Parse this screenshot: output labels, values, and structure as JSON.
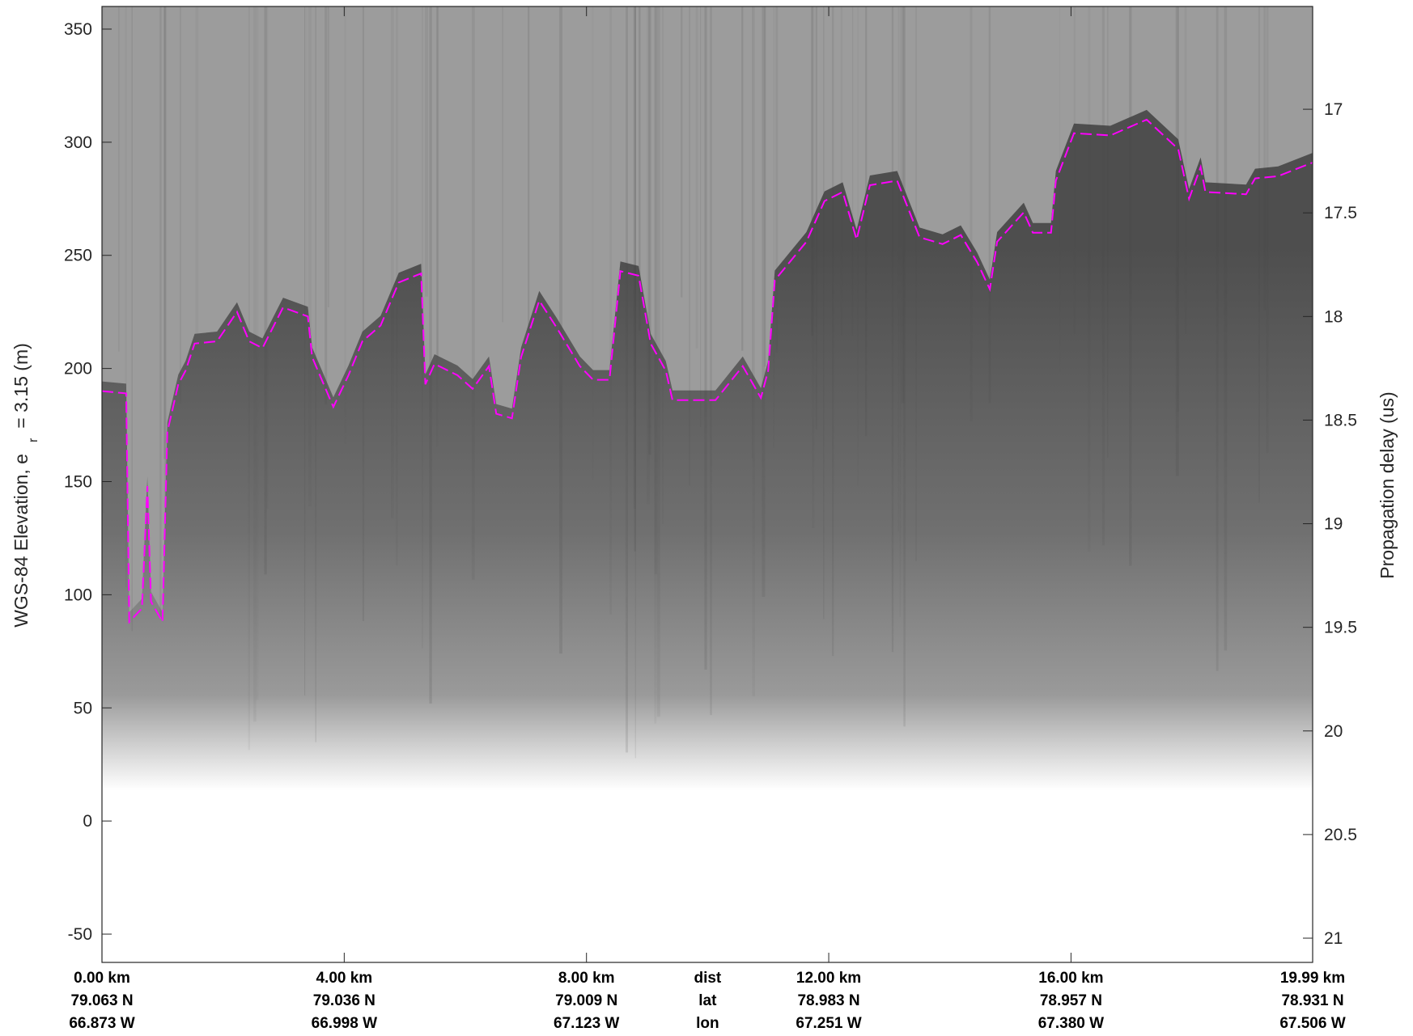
{
  "chart_data": {
    "type": "line",
    "ylabel": "WGS-84 Elevation, e",
    "ylabel_sub": "r",
    "ylabel_end": "= 3.15 (m)",
    "y2label": "Propagation delay (us)",
    "xlim": [
      0,
      19.99
    ],
    "xticks": [
      {
        "value": 0,
        "label": "0.00 km"
      },
      {
        "value": 4,
        "label": "4.00 km"
      },
      {
        "value": 8,
        "label": "8.00 km"
      },
      {
        "value": 12,
        "label": "12.00 km"
      },
      {
        "value": 16,
        "label": "16.00 km"
      },
      {
        "value": 19.99,
        "label": "19.99 km"
      }
    ],
    "row_labels": [
      "dist",
      "lat",
      "lon"
    ],
    "lat_labels": [
      "79.063 N",
      "79.036 N",
      "79.009 N",
      "78.983 N",
      "78.957 N",
      "78.931 N"
    ],
    "lon_labels": [
      "66.873 W",
      "66.998 W",
      "67.123 W",
      "67.251 W",
      "67.380 W",
      "67.506 W"
    ],
    "ylim": [
      -62.5,
      360
    ],
    "yticks": [
      -50,
      0,
      50,
      100,
      150,
      200,
      250,
      300,
      350
    ],
    "y2lim": [
      21.117,
      16.504
    ],
    "y2ticks": [
      17,
      17.5,
      18,
      18.5,
      19,
      19.5,
      20,
      20.5,
      21
    ],
    "x": [
      0,
      0.4,
      0.45,
      0.66,
      0.75,
      0.81,
      1.0,
      1.08,
      1.26,
      1.38,
      1.53,
      1.9,
      2.23,
      2.43,
      2.65,
      2.99,
      3.4,
      3.47,
      3.82,
      4.07,
      4.3,
      4.6,
      4.9,
      5.27,
      5.34,
      5.49,
      5.87,
      6.12,
      6.39,
      6.51,
      6.77,
      6.92,
      7.22,
      7.51,
      7.89,
      8.11,
      8.38,
      8.56,
      8.86,
      9.06,
      9.31,
      9.42,
      10.13,
      10.58,
      10.88,
      11.0,
      11.11,
      11.63,
      11.93,
      12.23,
      12.46,
      12.68,
      13.13,
      13.5,
      13.88,
      14.18,
      14.45,
      14.66,
      14.78,
      15.22,
      15.37,
      15.67,
      15.75,
      16.05,
      16.65,
      17.25,
      17.77,
      17.95,
      18.14,
      18.22,
      18.89,
      19.04,
      19.42,
      19.99
    ],
    "series": [
      {
        "color": "#ff00ff",
        "values": [
          190,
          189,
          88,
          94,
          148,
          97,
          88,
          172,
          193,
          199,
          211,
          212,
          225,
          212,
          209,
          227,
          223,
          205,
          183,
          197,
          212,
          219,
          238,
          242,
          193,
          202,
          197,
          191,
          201,
          180,
          178,
          205,
          230,
          218,
          201,
          195,
          195,
          243,
          241,
          211,
          199,
          186,
          186,
          201,
          187,
          199,
          239,
          256,
          274,
          278,
          257,
          281,
          283,
          258,
          255,
          259,
          247,
          235,
          256,
          269,
          260,
          260,
          283,
          304,
          303,
          310,
          297,
          275,
          289,
          278,
          277,
          284,
          285,
          291
        ]
      }
    ]
  }
}
